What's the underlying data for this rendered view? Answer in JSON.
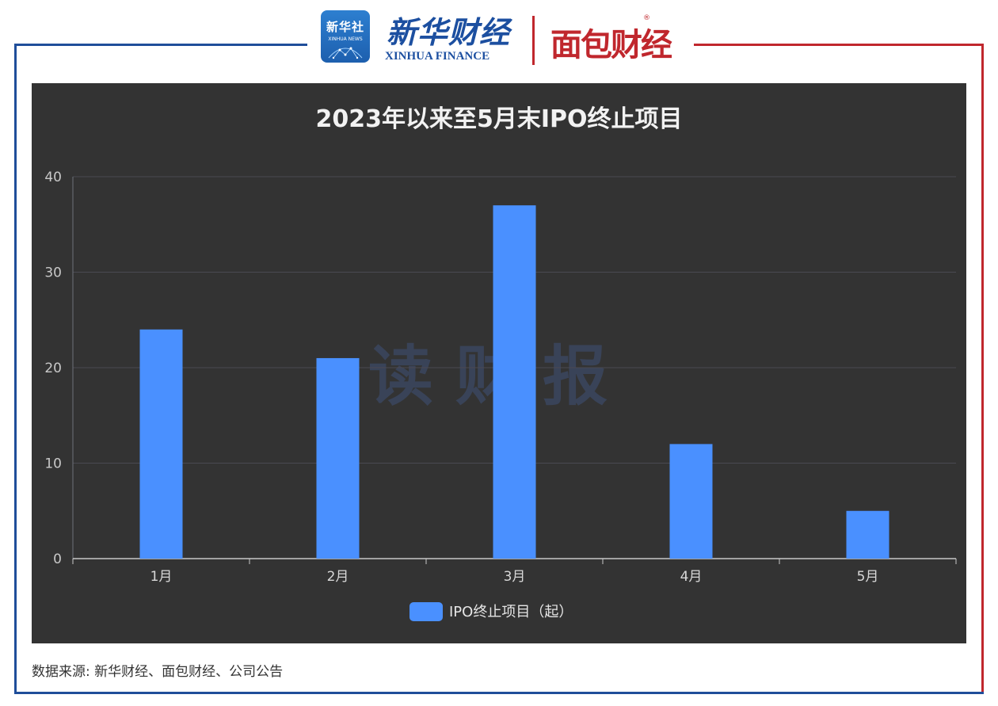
{
  "header": {
    "xinhua_badge_cn": "新华社",
    "xinhua_badge_en": "XINHUA NEWS",
    "finance_cn": "新华财经",
    "finance_en": "XINHUA FINANCE",
    "mianbao_logo": "面包财经",
    "registered_mark": "®"
  },
  "watermark": "读财报",
  "source": "数据来源: 新华财经、面包财经、公司公告",
  "colors": {
    "bar": "#4a90ff",
    "panel_background": "#333333",
    "frame_left": "#1f4e9a",
    "frame_right": "#c0272d"
  },
  "chart_data": {
    "type": "bar",
    "title": "2023年以来至5月末IPO终止项目",
    "categories": [
      "1月",
      "2月",
      "3月",
      "4月",
      "5月"
    ],
    "series": [
      {
        "name": "IPO终止项目（起）",
        "values": [
          24,
          21,
          37,
          12,
          5
        ]
      }
    ],
    "ylim": [
      0,
      40
    ],
    "yticks": [
      "0",
      "10",
      "20",
      "30",
      "40"
    ],
    "grid": true,
    "legend_position": "bottom-center"
  }
}
